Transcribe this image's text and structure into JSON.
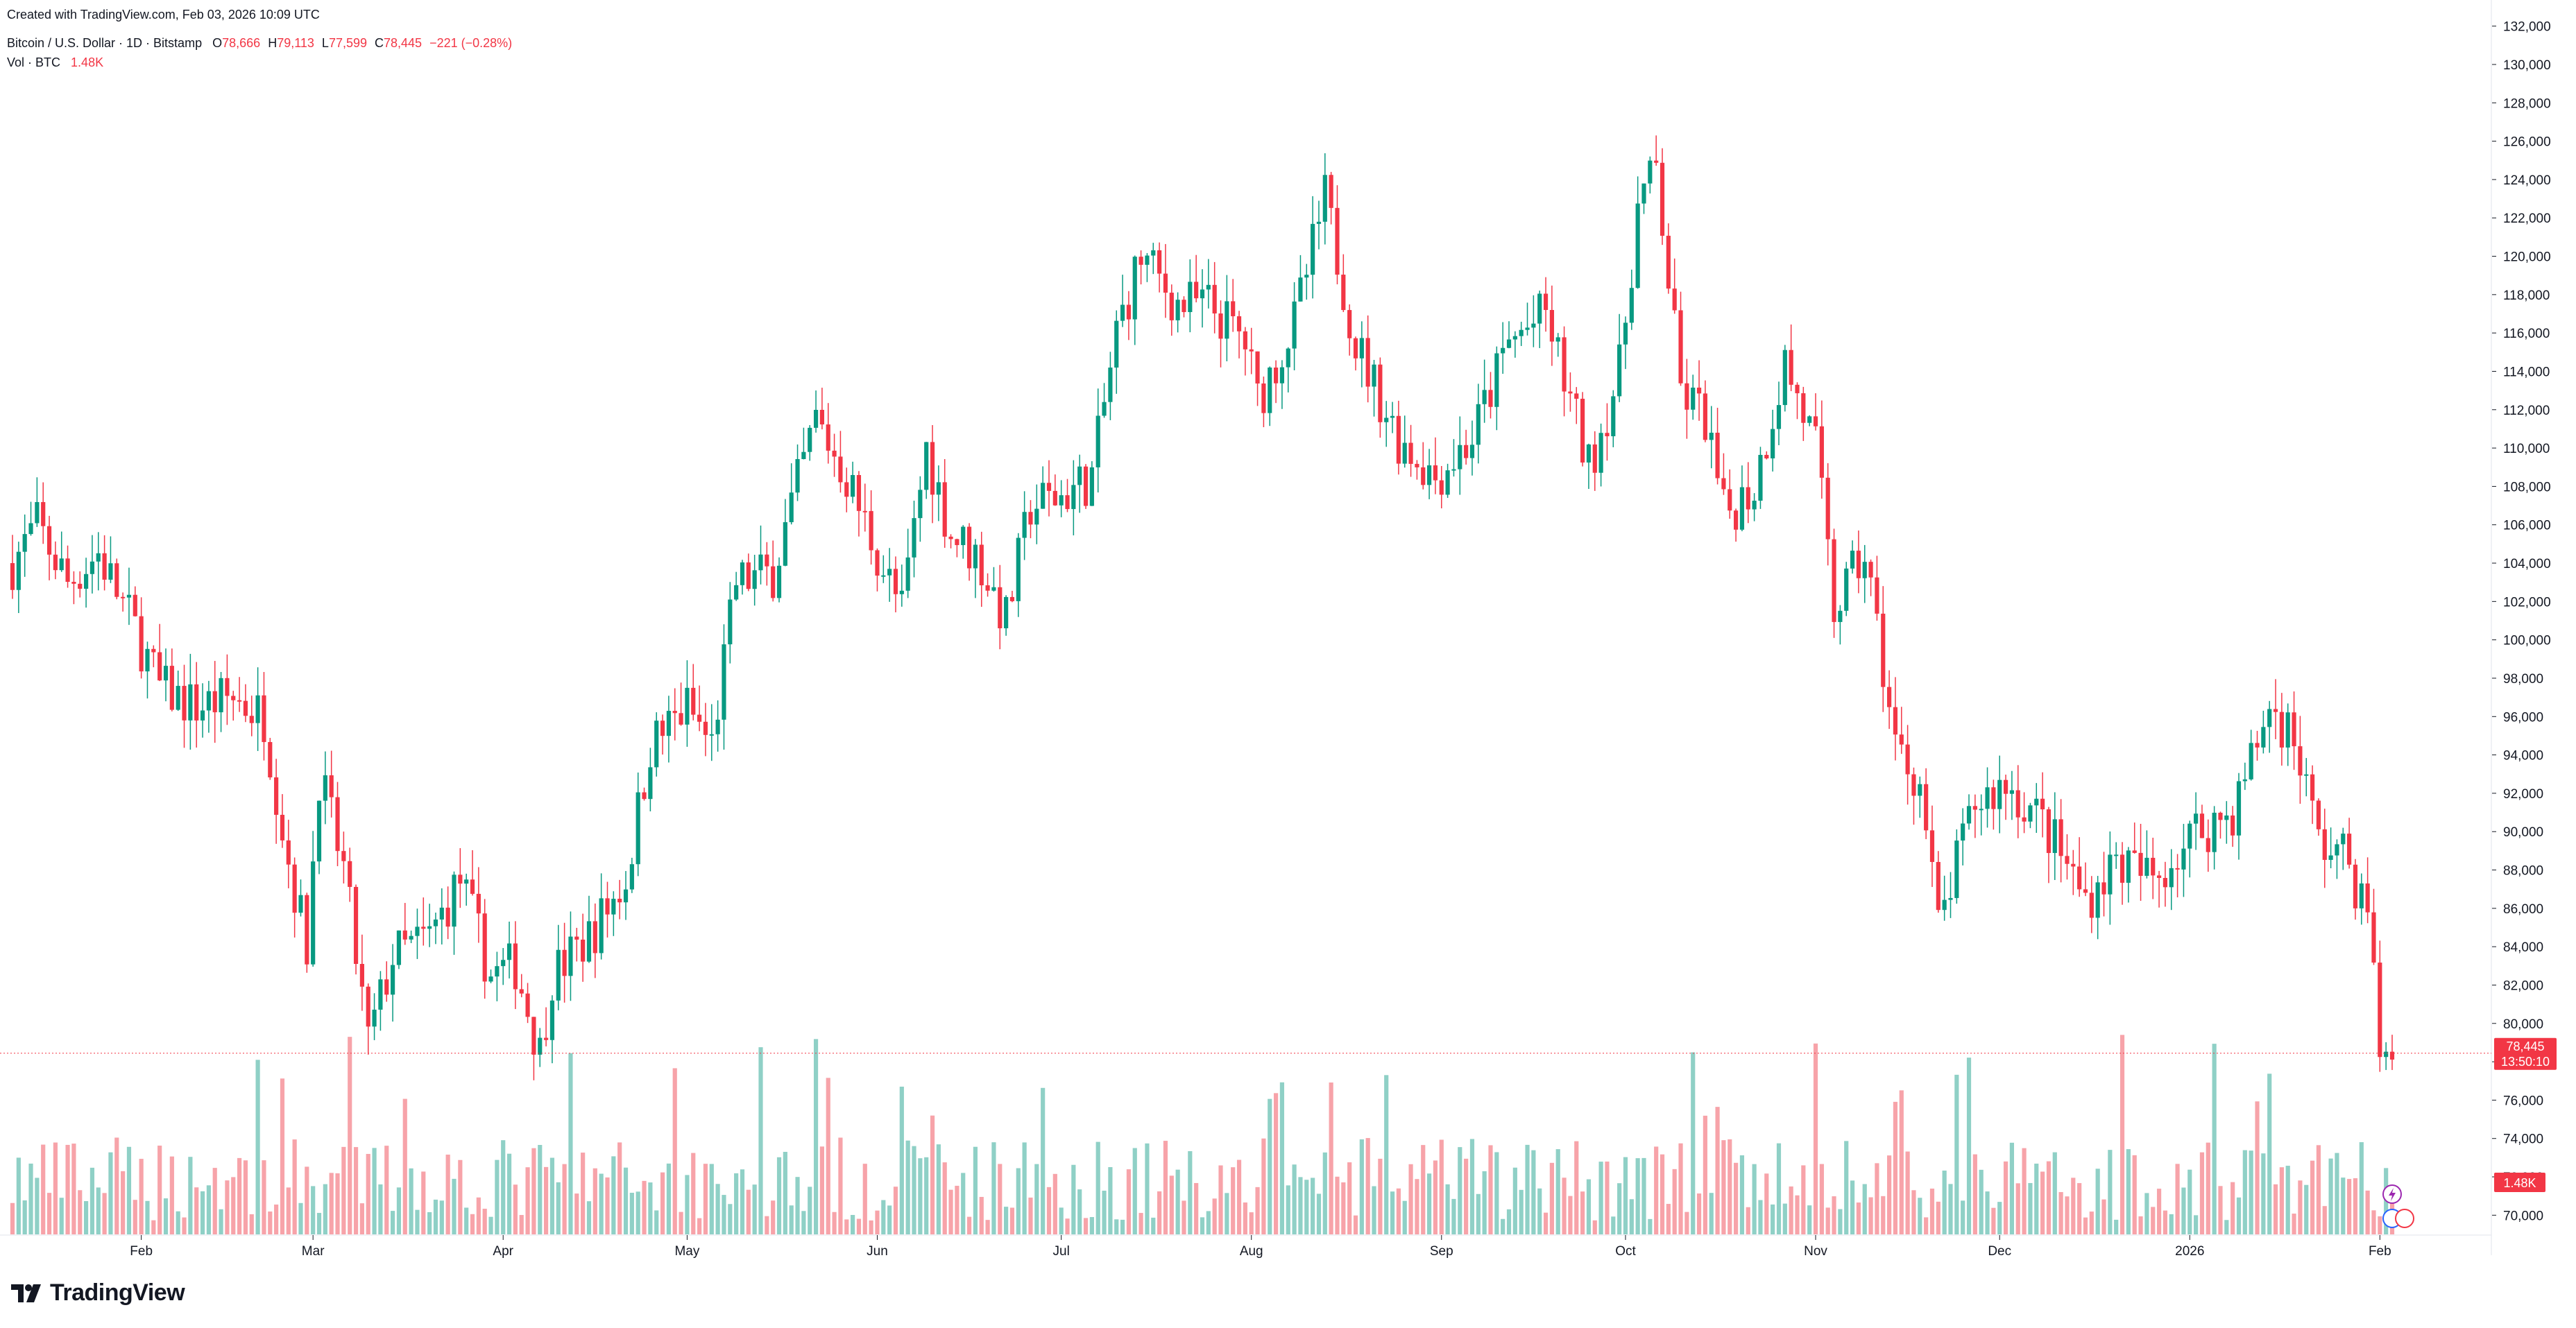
{
  "header": {
    "created": "Created with TradingView.com, Feb 03, 2026 10:09 UTC",
    "symbol_title": "Bitcoin / U.S. Dollar · 1D · Bitstamp",
    "o_label": "O",
    "o_value": "78,666",
    "h_label": "H",
    "h_value": "79,113",
    "l_label": "L",
    "l_value": "77,599",
    "c_label": "C",
    "c_value": "78,445",
    "change": "−221 (−0.28%)",
    "vol_label": "Vol · BTC",
    "vol_value": "1.48K"
  },
  "brand": {
    "name": "TradingView"
  },
  "price_badge": {
    "price": "78,445",
    "countdown": "13:50:10",
    "volume": "1.48K"
  },
  "colors": {
    "up": "#089981",
    "down": "#f23645",
    "up_vol": "#8fd0c6",
    "down_vol": "#f7a3a9",
    "grid_line": "#d1d4dc",
    "badge": "#f23645"
  },
  "chart_data": {
    "type": "candlestick",
    "y_axis": {
      "range": [
        69000,
        133000
      ],
      "ticks": [
        70000,
        72000,
        74000,
        76000,
        78000,
        80000,
        82000,
        84000,
        86000,
        88000,
        90000,
        92000,
        94000,
        96000,
        98000,
        100000,
        102000,
        104000,
        106000,
        108000,
        110000,
        112000,
        114000,
        116000,
        118000,
        120000,
        122000,
        124000,
        126000,
        128000,
        130000,
        132000
      ],
      "tick_labels": [
        "70,000",
        "72,000",
        "74,000",
        "76,000",
        "78,000",
        "80,000",
        "82,000",
        "84,000",
        "86,000",
        "88,000",
        "90,000",
        "92,000",
        "94,000",
        "96,000",
        "98,000",
        "100,000",
        "102,000",
        "104,000",
        "106,000",
        "108,000",
        "110,000",
        "112,000",
        "114,000",
        "116,000",
        "118,000",
        "120,000",
        "122,000",
        "124,000",
        "126,000",
        "128,000",
        "130,000",
        "132,000"
      ]
    },
    "x_axis": {
      "start_date": "2025-01-11",
      "end_date": "2026-02-03",
      "ticks": [
        {
          "label": "Feb",
          "date": "2025-02-01"
        },
        {
          "label": "Mar",
          "date": "2025-03-01"
        },
        {
          "label": "Apr",
          "date": "2025-04-01"
        },
        {
          "label": "May",
          "date": "2025-05-01"
        },
        {
          "label": "Jun",
          "date": "2025-06-01"
        },
        {
          "label": "Jul",
          "date": "2025-07-01"
        },
        {
          "label": "Aug",
          "date": "2025-08-01"
        },
        {
          "label": "Sep",
          "date": "2025-09-01"
        },
        {
          "label": "Oct",
          "date": "2025-10-01"
        },
        {
          "label": "Nov",
          "date": "2025-11-01"
        },
        {
          "label": "Dec",
          "date": "2025-12-01"
        },
        {
          "label": "2026",
          "date": "2026-01-01"
        },
        {
          "label": "Feb",
          "date": "2026-02-01"
        }
      ]
    },
    "close_series": [
      [
        "2025-01-11",
        104000
      ],
      [
        "2025-01-15",
        106000
      ],
      [
        "2025-01-20",
        103000
      ],
      [
        "2025-01-25",
        104500
      ],
      [
        "2025-01-31",
        100500
      ],
      [
        "2025-02-04",
        97500
      ],
      [
        "2025-02-10",
        96500
      ],
      [
        "2025-02-16",
        97000
      ],
      [
        "2025-02-21",
        96000
      ],
      [
        "2025-02-25",
        88500
      ],
      [
        "2025-02-28",
        84000
      ],
      [
        "2025-03-02",
        93000
      ],
      [
        "2025-03-06",
        88000
      ],
      [
        "2025-03-10",
        79000
      ],
      [
        "2025-03-14",
        83500
      ],
      [
        "2025-03-20",
        84500
      ],
      [
        "2025-03-25",
        87500
      ],
      [
        "2025-03-30",
        82500
      ],
      [
        "2025-04-03",
        83000
      ],
      [
        "2025-04-07",
        78500
      ],
      [
        "2025-04-09",
        82500
      ],
      [
        "2025-04-15",
        84500
      ],
      [
        "2025-04-21",
        87500
      ],
      [
        "2025-04-25",
        94500
      ],
      [
        "2025-05-01",
        96500
      ],
      [
        "2025-05-05",
        94500
      ],
      [
        "2025-05-09",
        103000
      ],
      [
        "2025-05-15",
        103500
      ],
      [
        "2025-05-22",
        111500
      ],
      [
        "2025-05-27",
        108500
      ],
      [
        "2025-06-01",
        104500
      ],
      [
        "2025-06-05",
        101500
      ],
      [
        "2025-06-09",
        110000
      ],
      [
        "2025-06-13",
        105500
      ],
      [
        "2025-06-17",
        104500
      ],
      [
        "2025-06-22",
        101000
      ],
      [
        "2025-06-26",
        107000
      ],
      [
        "2025-07-01",
        107500
      ],
      [
        "2025-07-06",
        108500
      ],
      [
        "2025-07-10",
        116000
      ],
      [
        "2025-07-14",
        120000
      ],
      [
        "2025-07-20",
        117500
      ],
      [
        "2025-07-25",
        117500
      ],
      [
        "2025-07-31",
        115500
      ],
      [
        "2025-08-02",
        112500
      ],
      [
        "2025-08-08",
        116500
      ],
      [
        "2025-08-13",
        123000
      ],
      [
        "2025-08-18",
        115500
      ],
      [
        "2025-08-25",
        110500
      ],
      [
        "2025-08-31",
        108500
      ],
      [
        "2025-09-06",
        110500
      ],
      [
        "2025-09-12",
        115500
      ],
      [
        "2025-09-18",
        117000
      ],
      [
        "2025-09-25",
        109000
      ],
      [
        "2025-09-30",
        114000
      ],
      [
        "2025-10-03",
        122500
      ],
      [
        "2025-10-06",
        124500
      ],
      [
        "2025-10-10",
        113000
      ],
      [
        "2025-10-14",
        111500
      ],
      [
        "2025-10-17",
        106500
      ],
      [
        "2025-10-22",
        108000
      ],
      [
        "2025-10-27",
        114500
      ],
      [
        "2025-11-01",
        110000
      ],
      [
        "2025-11-04",
        101500
      ],
      [
        "2025-11-09",
        104500
      ],
      [
        "2025-11-14",
        94500
      ],
      [
        "2025-11-18",
        92500
      ],
      [
        "2025-11-21",
        85000
      ],
      [
        "2025-11-27",
        91500
      ],
      [
        "2025-12-02",
        92500
      ],
      [
        "2025-12-08",
        90500
      ],
      [
        "2025-12-15",
        86500
      ],
      [
        "2025-12-20",
        88500
      ],
      [
        "2025-12-26",
        87500
      ],
      [
        "2026-01-02",
        90000
      ],
      [
        "2026-01-08",
        91000
      ],
      [
        "2026-01-14",
        96500
      ],
      [
        "2026-01-18",
        95000
      ],
      [
        "2026-01-22",
        89500
      ],
      [
        "2026-01-27",
        88500
      ],
      [
        "2026-01-31",
        84000
      ],
      [
        "2026-02-01",
        77500
      ],
      [
        "2026-02-03",
        78445
      ]
    ],
    "last_price": 78445
  }
}
